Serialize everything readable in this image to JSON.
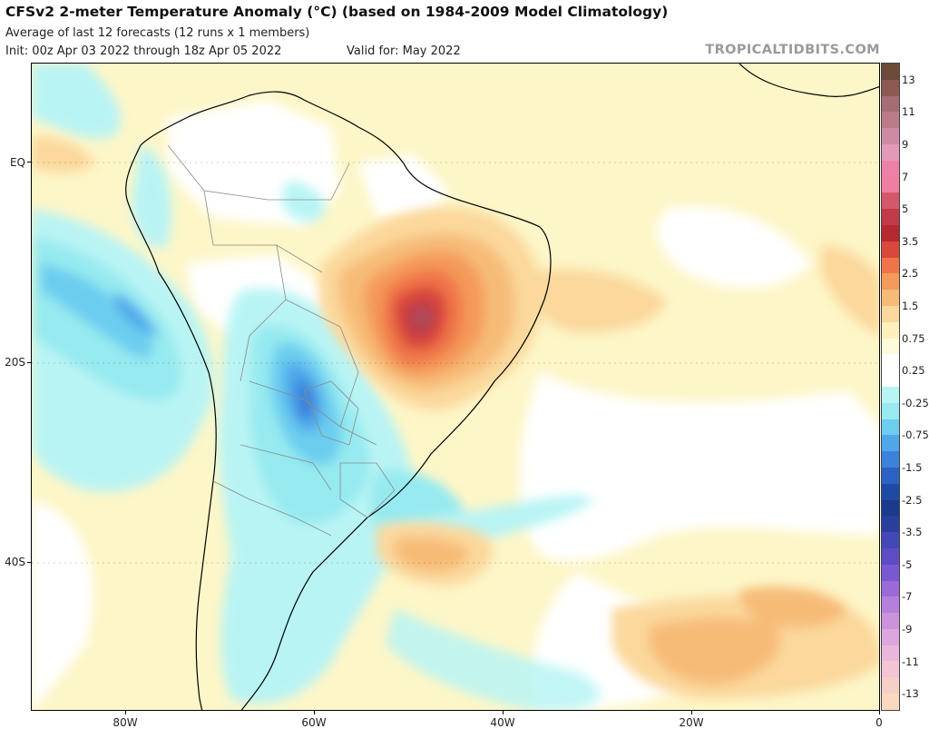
{
  "header": {
    "title": "CFSv2 2-meter Temperature Anomaly (°C) (based on 1984-2009 Model Climatology)",
    "subtitle": "Average of last 12 forecasts (12 runs x 1 members)",
    "init": "Init: 00z Apr 03 2022 through 18z Apr 05 2022",
    "valid": "Valid for: May 2022",
    "watermark": "TROPICALTIDBITS.COM"
  },
  "map": {
    "lon_range": [
      -90,
      0
    ],
    "lat_range": [
      12,
      -57
    ],
    "lat_labels": [
      "EQ",
      "20S",
      "40S"
    ],
    "lon_labels": [
      "80W",
      "60W",
      "40W",
      "20W",
      "0"
    ],
    "colors": {
      "land_outline": "#000000",
      "border": "#8a8a8a"
    }
  },
  "colorbar": {
    "labels": [
      "13",
      "11",
      "9",
      "7",
      "5",
      "3.5",
      "2.5",
      "1.5",
      "0.75",
      "0.25",
      "-0.25",
      "-0.75",
      "-1.5",
      "-2.5",
      "-3.5",
      "-5",
      "-7",
      "-9",
      "-11",
      "-13"
    ],
    "colors": [
      "#6e4a3a",
      "#8c5a50",
      "#a66e74",
      "#bb7c8a",
      "#cc8aa4",
      "#e29ab8",
      "#ee7fa8",
      "#f07ea0",
      "#d4586a",
      "#c03a48",
      "#b52a30",
      "#d9483a",
      "#f0744a",
      "#f49a5a",
      "#f7bb78",
      "#fbd89c",
      "#fdf0bc",
      "#fefbdc",
      "#ffffff",
      "#ffffff",
      "#b9f4f4",
      "#96eaf0",
      "#6ccdef",
      "#4fa7ea",
      "#3b82db",
      "#2c62c4",
      "#1e4aa6",
      "#1a3a8c",
      "#2a3e9e",
      "#4248b8",
      "#5d4cc4",
      "#7a58d2",
      "#9a6ad8",
      "#b57fdc",
      "#cc93dc",
      "#dea6de",
      "#eab6dc",
      "#f2c4d4",
      "#f6cfc6",
      "#fbd9bf"
    ]
  }
}
